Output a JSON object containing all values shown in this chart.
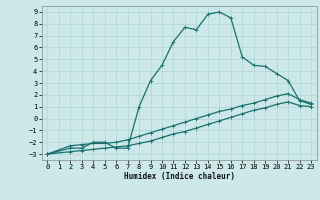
{
  "xlabel": "Humidex (Indice chaleur)",
  "xlim": [
    -0.5,
    23.5
  ],
  "ylim": [
    -3.5,
    9.5
  ],
  "xticks": [
    0,
    1,
    2,
    3,
    4,
    5,
    6,
    7,
    8,
    9,
    10,
    11,
    12,
    13,
    14,
    15,
    16,
    17,
    18,
    19,
    20,
    21,
    22,
    23
  ],
  "yticks": [
    -3,
    -2,
    -1,
    0,
    1,
    2,
    3,
    4,
    5,
    6,
    7,
    8,
    9
  ],
  "bg_color": "#cce8e8",
  "grid_color": "#b0d4d4",
  "line_color": "#1a7070",
  "line1_x": [
    0,
    2,
    3,
    4,
    5,
    6,
    7,
    8,
    9,
    10,
    11,
    12,
    13,
    14,
    15,
    16,
    17,
    18,
    19,
    20,
    21,
    22,
    23
  ],
  "line1_y": [
    -3.0,
    -2.5,
    -2.5,
    -2.0,
    -2.0,
    -2.5,
    -2.5,
    1.0,
    3.2,
    4.5,
    6.5,
    7.7,
    7.5,
    8.8,
    9.0,
    8.5,
    5.2,
    4.5,
    4.4,
    3.8,
    3.2,
    1.5,
    1.2
  ],
  "line2_x": [
    0,
    2,
    3,
    4,
    5,
    6,
    7,
    8,
    9,
    10,
    11,
    12,
    13,
    14,
    15,
    16,
    17,
    18,
    19,
    20,
    21,
    22,
    23
  ],
  "line2_y": [
    -3.0,
    -2.3,
    -2.2,
    -2.1,
    -2.1,
    -2.0,
    -1.8,
    -1.5,
    -1.2,
    -0.9,
    -0.6,
    -0.3,
    0.0,
    0.3,
    0.6,
    0.8,
    1.1,
    1.3,
    1.6,
    1.9,
    2.1,
    1.6,
    1.3
  ],
  "line3_x": [
    0,
    2,
    3,
    4,
    5,
    6,
    7,
    8,
    9,
    10,
    11,
    12,
    13,
    14,
    15,
    16,
    17,
    18,
    19,
    20,
    21,
    22,
    23
  ],
  "line3_y": [
    -3.0,
    -2.8,
    -2.7,
    -2.6,
    -2.5,
    -2.4,
    -2.3,
    -2.1,
    -1.9,
    -1.6,
    -1.3,
    -1.1,
    -0.8,
    -0.5,
    -0.2,
    0.1,
    0.4,
    0.7,
    0.9,
    1.2,
    1.4,
    1.1,
    1.0
  ]
}
